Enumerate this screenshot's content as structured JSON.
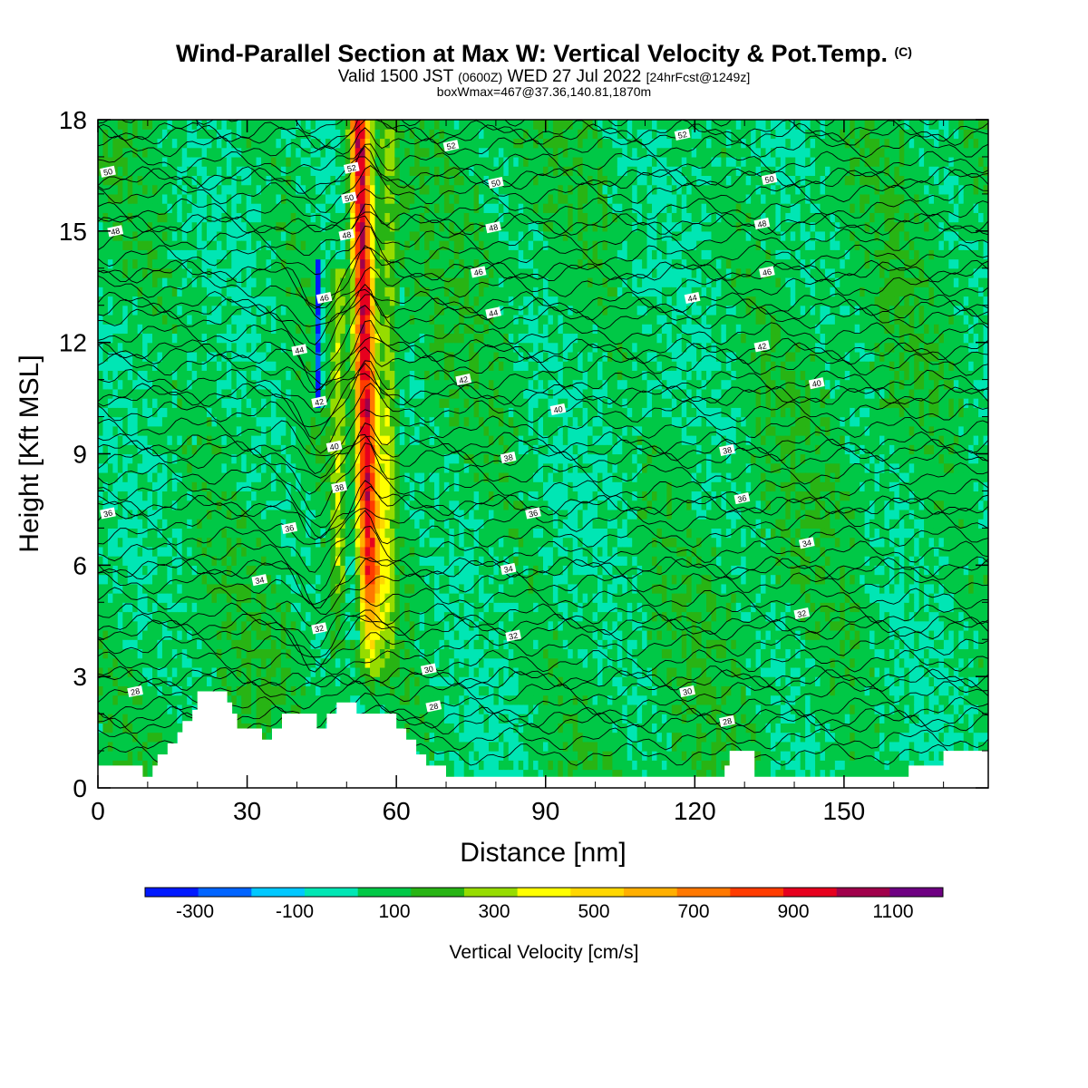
{
  "header": {
    "title": "Wind-Parallel Section at Max W: Vertical Velocity & Pot.Temp.",
    "title_mark": "(C)",
    "valid_a": "Valid 1500 JST",
    "valid_b": "(0600Z)",
    "valid_c": "WED 27 Jul 2022",
    "valid_d": "[24hrFcst@1249z]",
    "box_info": "boxWmax=467@37.36,140.81,1870m"
  },
  "colors": {
    "frame": "#000000",
    "terrain": "#ffffff",
    "theta_line": "#000000",
    "background": "#ffffff"
  },
  "chart_data": {
    "type": "heatmap",
    "title": "Wind-Parallel Section at Max W: Vertical Velocity & Pot.Temp.",
    "xlabel": "Distance [nm]",
    "ylabel": "Height [Kft MSL]",
    "xlim": [
      0,
      179
    ],
    "ylim": [
      0,
      18
    ],
    "x_ticks": [
      0,
      30,
      60,
      90,
      120,
      150
    ],
    "y_ticks": [
      0,
      3,
      6,
      9,
      12,
      15,
      18
    ],
    "grid": false,
    "colorbar": {
      "label": "Vertical Velocity [cm/s]",
      "placement": "bottom",
      "boundaries": [
        -400,
        -300,
        -200,
        -100,
        0,
        100,
        200,
        300,
        400,
        500,
        600,
        700,
        800,
        900,
        1000,
        1100,
        1200
      ],
      "tick_labels": [
        -300,
        -100,
        100,
        300,
        500,
        700,
        900,
        1100
      ],
      "colors": [
        "#0019ff",
        "#0064ff",
        "#00c8ff",
        "#00e6b4",
        "#00c846",
        "#28b414",
        "#96dc00",
        "#ffff00",
        "#ffd700",
        "#ffaf00",
        "#ff7800",
        "#ff3c00",
        "#e6001e",
        "#a0004b",
        "#6e0082"
      ]
    },
    "updraft": {
      "center_x": 54,
      "max_vertical_velocity_cm_s": 1000
    },
    "downdraft": {
      "center_x": 44.5,
      "min_vertical_velocity_cm_s": -300,
      "height_range": [
        10.5,
        14
      ]
    },
    "terrain_profile": {
      "x": [
        0,
        9,
        9,
        11,
        11,
        12,
        12,
        14,
        14,
        16,
        16,
        17,
        17,
        19,
        19,
        20,
        20,
        26,
        26,
        27,
        27,
        28,
        28,
        33,
        33,
        35,
        35,
        37,
        37,
        44,
        44,
        46,
        46,
        48,
        48,
        52,
        52,
        60,
        60,
        62,
        62,
        64,
        64,
        66,
        66,
        70,
        70,
        126,
        126,
        127,
        127,
        132,
        132,
        163,
        163,
        170,
        170,
        179
      ],
      "height_kft": [
        0.6,
        0.6,
        0.3,
        0.3,
        0.6,
        0.6,
        0.9,
        0.9,
        1.2,
        1.2,
        1.5,
        1.5,
        1.8,
        1.8,
        2.1,
        2.1,
        2.6,
        2.6,
        2.3,
        2.3,
        2.0,
        2.0,
        1.6,
        1.6,
        1.3,
        1.3,
        1.6,
        1.6,
        2.0,
        2.0,
        1.6,
        1.6,
        2.0,
        2.0,
        2.3,
        2.3,
        2.0,
        2.0,
        1.6,
        1.6,
        1.3,
        1.3,
        0.9,
        0.9,
        0.6,
        0.6,
        0.3,
        0.3,
        0.6,
        0.6,
        1.0,
        1.0,
        0.3,
        0.3,
        0.6,
        0.6,
        1.0,
        1.0
      ]
    },
    "theta_contours_K": {
      "interval": 2,
      "levels": [
        28,
        30,
        32,
        34,
        36,
        38,
        40,
        42,
        44,
        46,
        48,
        50,
        52
      ],
      "mean_height_kft": [
        1.9,
        2.9,
        4.4,
        5.9,
        7.6,
        9.1,
        10.6,
        11.7,
        12.9,
        13.9,
        15.2,
        16.4,
        17.6
      ],
      "labels": [
        {
          "text": "28",
          "x": 7.5,
          "y": 2.6
        },
        {
          "text": "30",
          "x": 66.5,
          "y": 3.2
        },
        {
          "text": "30",
          "x": 118.5,
          "y": 2.6
        },
        {
          "text": "28",
          "x": 67.5,
          "y": 2.2
        },
        {
          "text": "28",
          "x": 126.5,
          "y": 1.8
        },
        {
          "text": "32",
          "x": 44.5,
          "y": 4.3
        },
        {
          "text": "32",
          "x": 83.5,
          "y": 4.1
        },
        {
          "text": "32",
          "x": 141.5,
          "y": 4.7
        },
        {
          "text": "34",
          "x": 32.5,
          "y": 5.6
        },
        {
          "text": "34",
          "x": 82.5,
          "y": 5.9
        },
        {
          "text": "34",
          "x": 142.5,
          "y": 6.6
        },
        {
          "text": "36",
          "x": 38.5,
          "y": 7.0
        },
        {
          "text": "36",
          "x": 87.5,
          "y": 7.4
        },
        {
          "text": "36",
          "x": 129.5,
          "y": 7.8
        },
        {
          "text": "36",
          "x": 2.0,
          "y": 7.4
        },
        {
          "text": "38",
          "x": 48.5,
          "y": 8.1
        },
        {
          "text": "38",
          "x": 82.5,
          "y": 8.9
        },
        {
          "text": "38",
          "x": 126.5,
          "y": 9.1
        },
        {
          "text": "40",
          "x": 47.5,
          "y": 9.2
        },
        {
          "text": "40",
          "x": 92.5,
          "y": 10.2
        },
        {
          "text": "40",
          "x": 144.5,
          "y": 10.9
        },
        {
          "text": "42",
          "x": 44.5,
          "y": 10.4
        },
        {
          "text": "42",
          "x": 73.5,
          "y": 11.0
        },
        {
          "text": "42",
          "x": 133.5,
          "y": 11.9
        },
        {
          "text": "44",
          "x": 40.5,
          "y": 11.8
        },
        {
          "text": "44",
          "x": 79.5,
          "y": 12.8
        },
        {
          "text": "44",
          "x": 119.5,
          "y": 13.2
        },
        {
          "text": "46",
          "x": 45.5,
          "y": 13.2
        },
        {
          "text": "46",
          "x": 76.5,
          "y": 13.9
        },
        {
          "text": "46",
          "x": 134.5,
          "y": 13.9
        },
        {
          "text": "48",
          "x": 3.5,
          "y": 15.0
        },
        {
          "text": "48",
          "x": 50.0,
          "y": 14.9
        },
        {
          "text": "48",
          "x": 79.5,
          "y": 15.1
        },
        {
          "text": "48",
          "x": 133.5,
          "y": 15.2
        },
        {
          "text": "50",
          "x": 2.0,
          "y": 16.6
        },
        {
          "text": "50",
          "x": 50.5,
          "y": 15.9
        },
        {
          "text": "50",
          "x": 80.0,
          "y": 16.3
        },
        {
          "text": "50",
          "x": 135.0,
          "y": 16.4
        },
        {
          "text": "52",
          "x": 51.0,
          "y": 16.7
        },
        {
          "text": "52",
          "x": 71.0,
          "y": 17.3
        },
        {
          "text": "52",
          "x": 117.5,
          "y": 17.6
        }
      ]
    }
  }
}
